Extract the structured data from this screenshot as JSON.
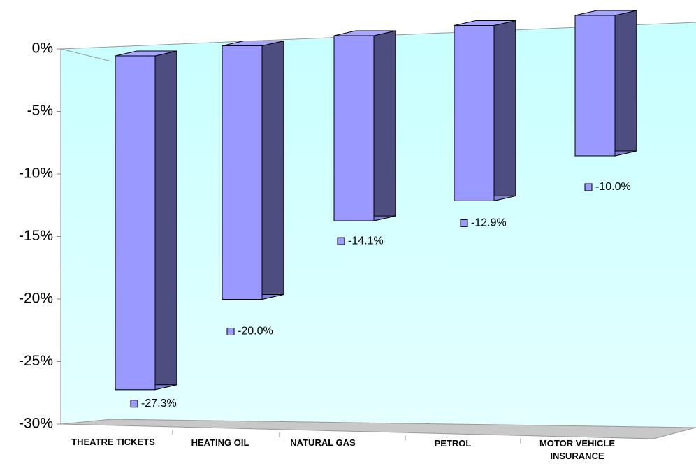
{
  "chart_data": {
    "type": "bar3d",
    "categories": [
      "THEATRE TICKETS",
      "HEATING OIL",
      "NATURAL GAS",
      "PETROL",
      "MOTOR VEHICLE INSURANCE"
    ],
    "values": [
      -27.3,
      -20.0,
      -14.1,
      -12.9,
      -10.0
    ],
    "value_labels": [
      "-27.3%",
      "-20.0%",
      "-14.1%",
      "-12.9%",
      "-10.0%"
    ],
    "color": "#9999ff",
    "ylim": [
      -30,
      0
    ],
    "yticks": [
      {
        "value": 0,
        "label": "0%"
      },
      {
        "value": -5,
        "label": "-5%"
      },
      {
        "value": -10,
        "label": "-10%"
      },
      {
        "value": -15,
        "label": "-15%"
      },
      {
        "value": -20,
        "label": "-20%"
      },
      {
        "value": -25,
        "label": "-25%"
      },
      {
        "value": -30,
        "label": "-30%"
      }
    ]
  }
}
